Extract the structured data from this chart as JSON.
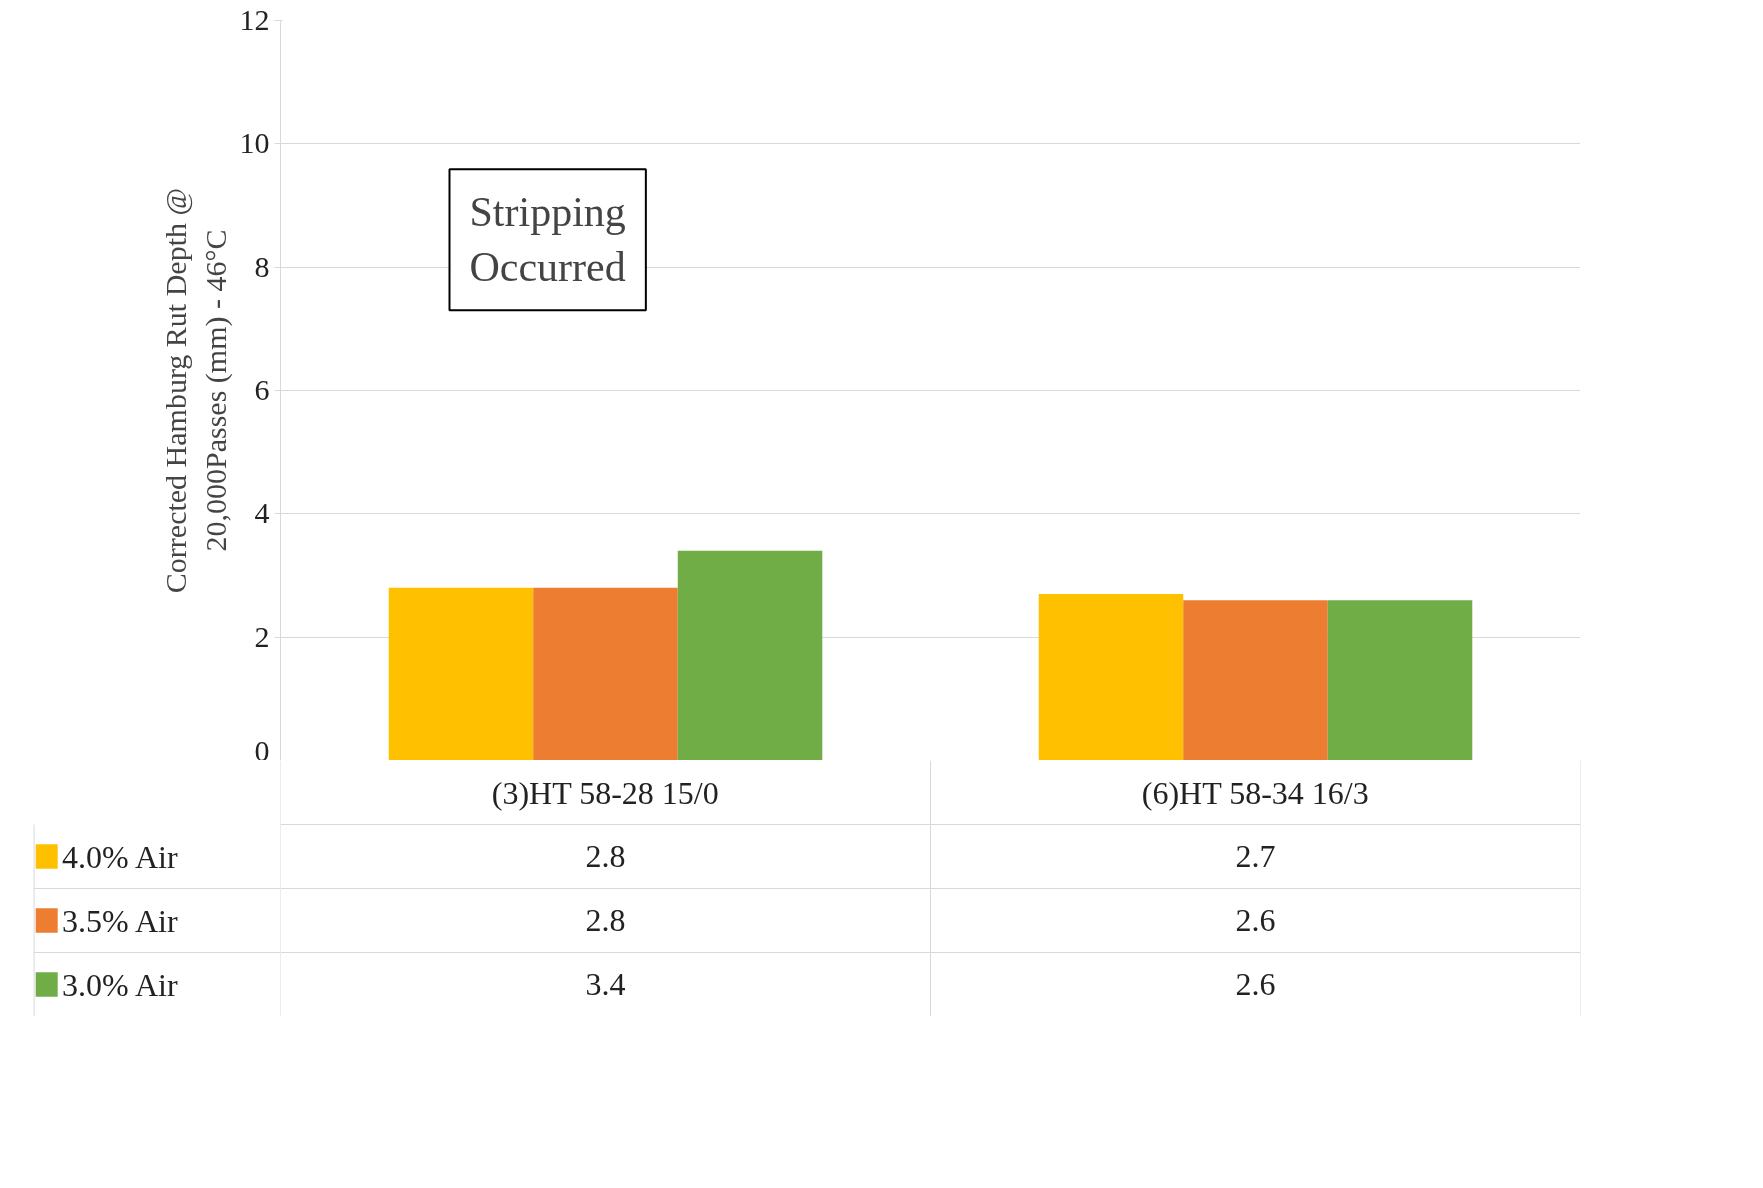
{
  "chart_data": {
    "type": "bar",
    "ylabel": "Corrected Hamburg Rut Depth @\n20,000Passes (mm) - 46°C",
    "categories": [
      "(3)HT 58-28 15/0",
      "(6)HT 58-34 16/3"
    ],
    "series": [
      {
        "name": "4.0% Air",
        "color": "#ffc000",
        "values": [
          2.8,
          2.7
        ]
      },
      {
        "name": "3.5% Air",
        "color": "#ed7d31",
        "values": [
          2.8,
          2.6
        ]
      },
      {
        "name": "3.0% Air",
        "color": "#70ad47",
        "values": [
          3.4,
          2.6
        ]
      }
    ],
    "ylim": [
      0,
      12
    ],
    "yticks": [
      0,
      2,
      4,
      6,
      8,
      10,
      12
    ],
    "grid": "y",
    "legend": "bottom",
    "data_labels": true,
    "annotations": [
      "Stripping Occurred"
    ]
  }
}
